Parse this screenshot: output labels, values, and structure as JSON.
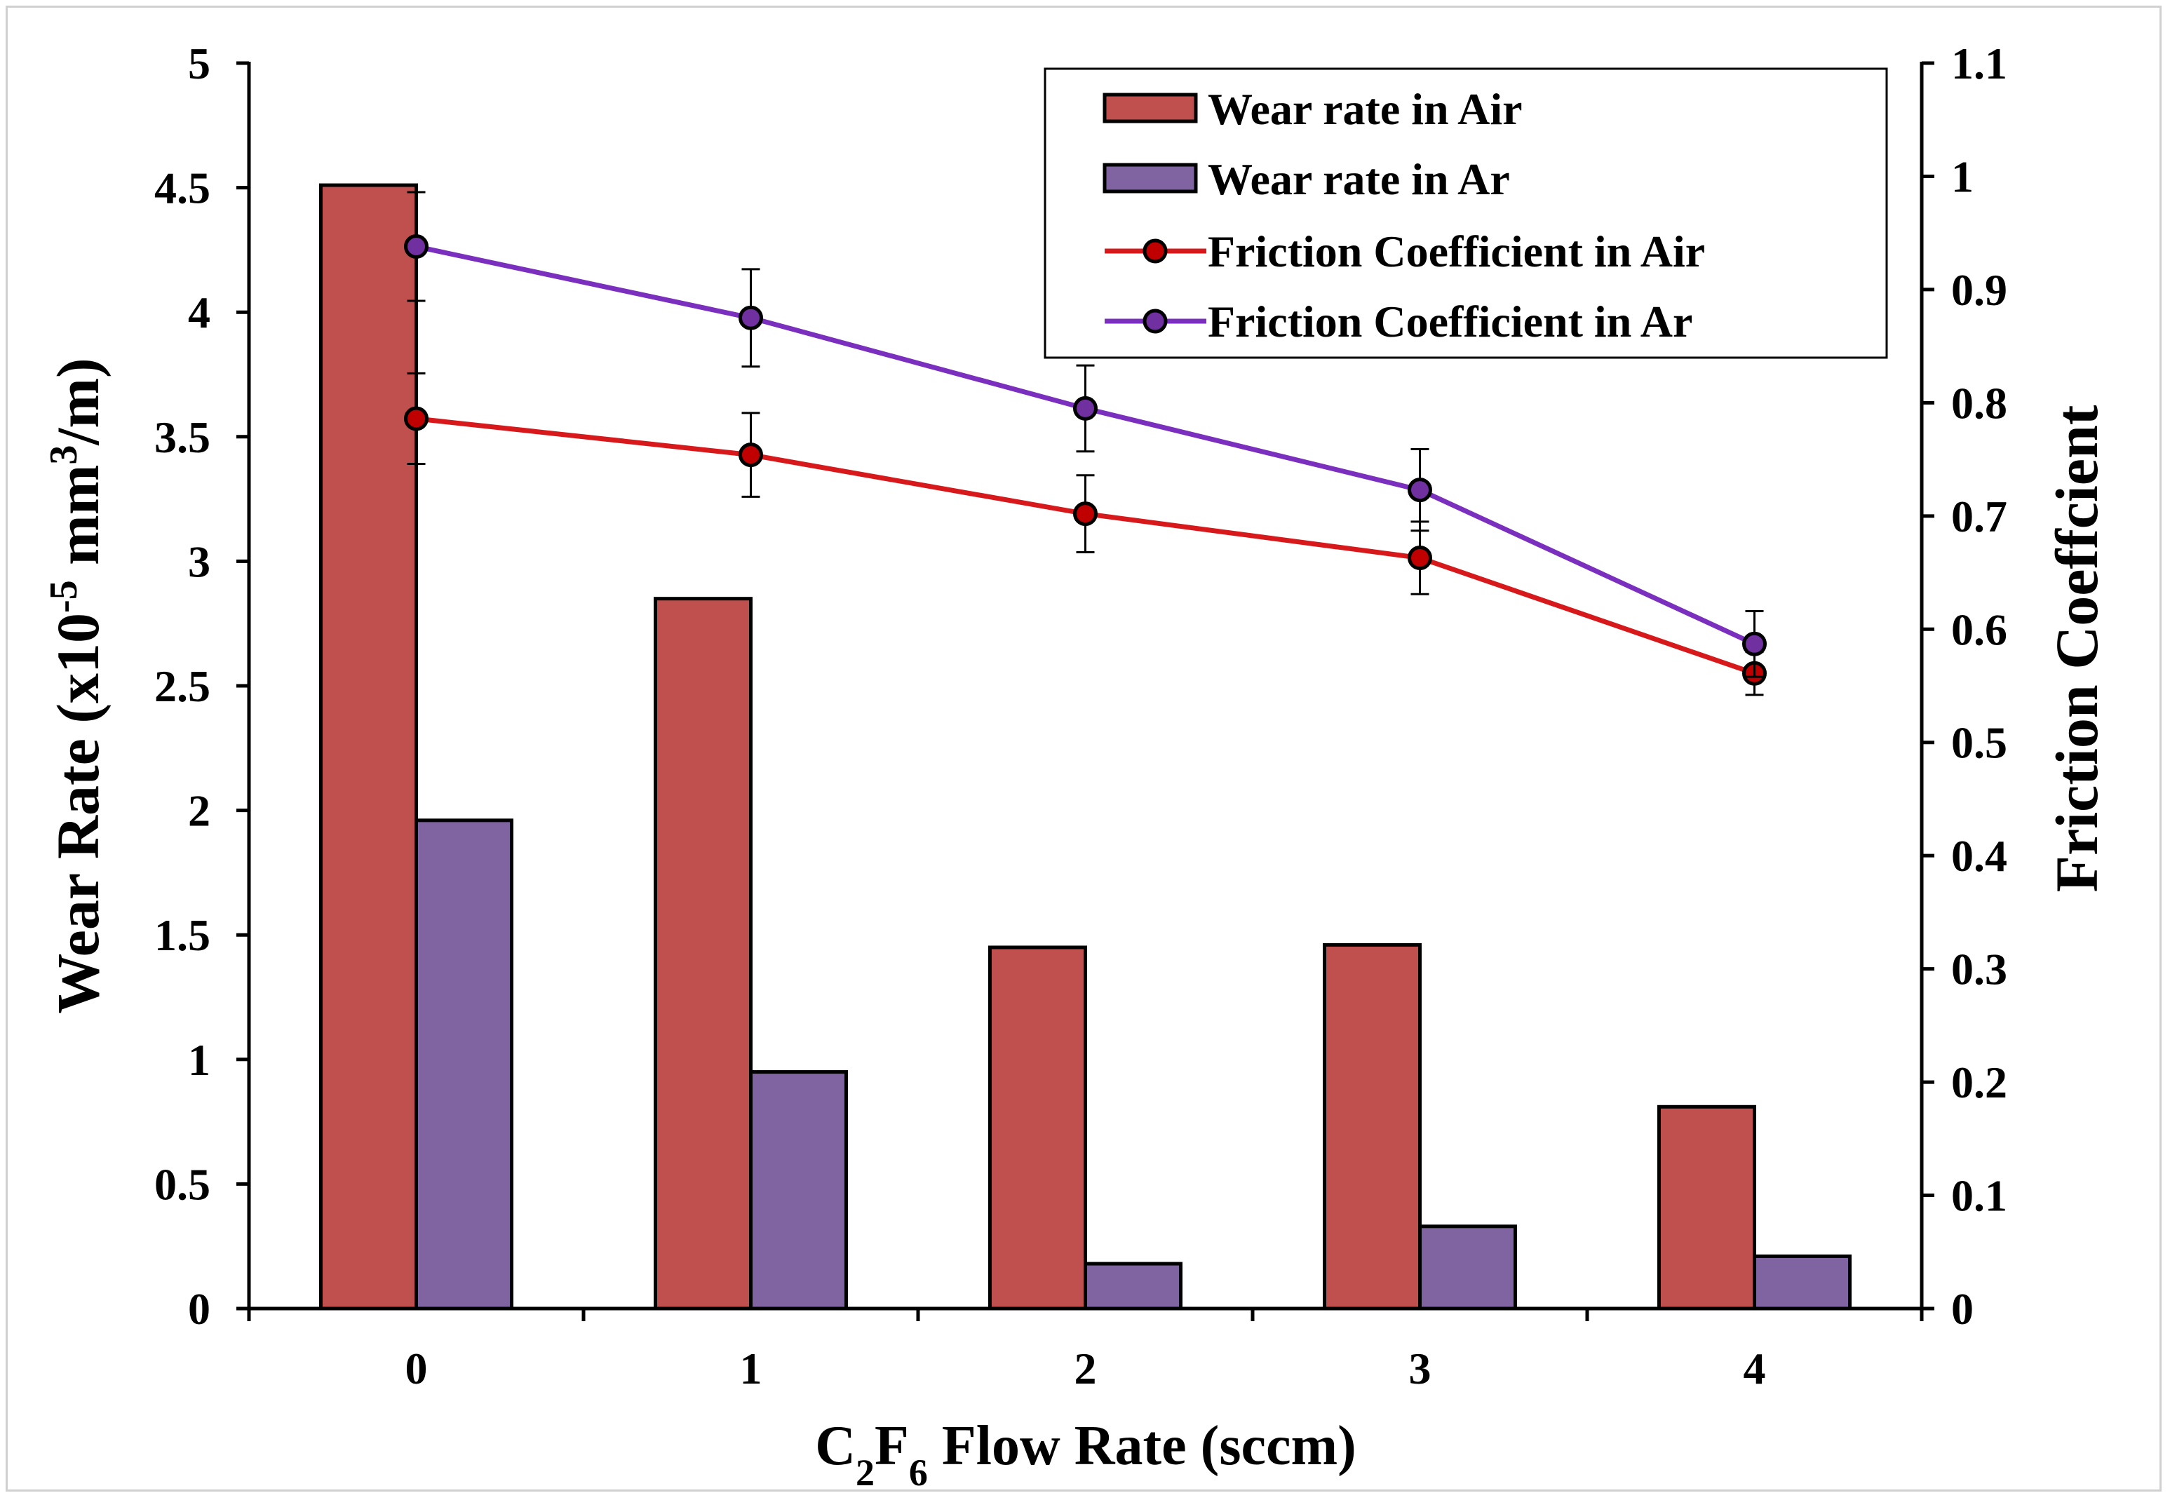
{
  "chart_data": {
    "type": "bar+line",
    "categories": [
      "0",
      "1",
      "2",
      "3",
      "4"
    ],
    "xlabel": {
      "parts": [
        {
          "text": "C",
          "sub": false
        },
        {
          "text": "2",
          "sub": true
        },
        {
          "text": "F",
          "sub": false
        },
        {
          "text": "6",
          "sub": true
        },
        {
          "text": " Flow Rate (sccm)",
          "sub": false
        }
      ]
    },
    "ylabel_left": {
      "parts": [
        {
          "text": "Wear Rate (x10",
          "sup": false
        },
        {
          "text": "-5",
          "sup": true
        },
        {
          "text": " mm",
          "sup": false
        },
        {
          "text": "3",
          "sup": true
        },
        {
          "text": "/m)",
          "sup": false
        }
      ]
    },
    "ylabel_right": "Friction Coeffcient",
    "ylim_left": [
      0,
      5
    ],
    "yticks_left": [
      "0",
      "0.5",
      "1",
      "1.5",
      "2",
      "2.5",
      "3",
      "3.5",
      "4",
      "4.5",
      "5"
    ],
    "ylim_right": [
      0,
      1.1
    ],
    "yticks_right": [
      "0",
      "0.1",
      "0.2",
      "0.3",
      "0.4",
      "0.5",
      "0.6",
      "0.7",
      "0.8",
      "0.9",
      "1",
      "1.1"
    ],
    "bar_series": [
      {
        "name": "Wear rate in Air",
        "color": "#c0504d",
        "values": [
          4.51,
          2.85,
          1.45,
          1.46,
          0.81
        ]
      },
      {
        "name": "Wear rate in Ar",
        "color": "#8064a2",
        "values": [
          1.96,
          0.95,
          0.18,
          0.33,
          0.21
        ]
      }
    ],
    "line_series": [
      {
        "name": "Friction Coefficient in Air",
        "color": "#d7191c",
        "marker": "#c00000",
        "values": [
          0.786,
          0.754,
          0.702,
          0.663,
          0.561
        ],
        "errors": [
          0.04,
          0.037,
          0.034,
          0.032,
          0.019
        ]
      },
      {
        "name": "Friction Coefficient in Ar",
        "color": "#7b2fbe",
        "marker": "#7030a0",
        "values": [
          0.938,
          0.875,
          0.795,
          0.723,
          0.587
        ],
        "errors": [
          0.048,
          0.043,
          0.038,
          0.036,
          0.029
        ]
      }
    ],
    "legend_position": "top-right",
    "grid": false
  }
}
